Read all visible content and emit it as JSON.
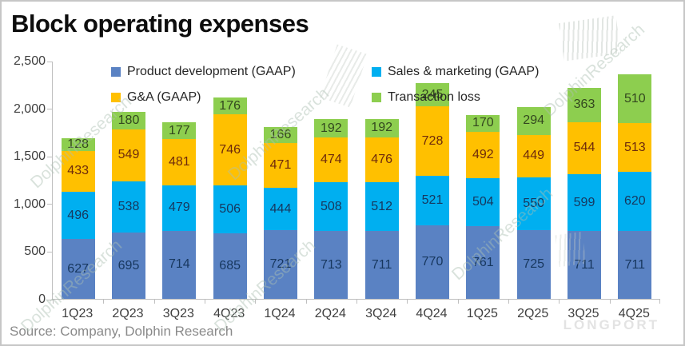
{
  "title": "Block operating expenses",
  "source": "Source: Company, Dolphin Research",
  "watermarks": {
    "diagonal_text": "DolphinResearch",
    "brand_text": "LONGPORT"
  },
  "colors": {
    "product_development": "#5a82c3",
    "sales_marketing": "#00aff0",
    "ga": "#ffc000",
    "transaction_loss": "#8dce4f",
    "axis_line": "#bfbfbf",
    "axis_text": "#3f3f3f",
    "source_text": "#8a8a8a"
  },
  "chart_data": {
    "type": "bar",
    "stacked": true,
    "title": "Block operating expenses",
    "categories": [
      "1Q23",
      "2Q23",
      "3Q23",
      "4Q23",
      "1Q24",
      "2Q24",
      "3Q24",
      "4Q24",
      "1Q25",
      "2Q25",
      "3Q25",
      "4Q25"
    ],
    "series": [
      {
        "name": "Product development (GAAP)",
        "color": "#5a82c3",
        "label_color": "#17375e",
        "values": [
          627,
          695,
          714,
          685,
          721,
          713,
          711,
          770,
          761,
          725,
          711,
          711
        ]
      },
      {
        "name": "Sales & marketing (GAAP)",
        "color": "#00aff0",
        "label_color": "#17375e",
        "values": [
          496,
          538,
          479,
          506,
          444,
          508,
          512,
          521,
          504,
          550,
          599,
          620
        ]
      },
      {
        "name": "G&A (GAAP)",
        "color": "#ffc000",
        "label_color": "#6e2a0c",
        "values": [
          433,
          549,
          481,
          746,
          471,
          474,
          476,
          728,
          492,
          449,
          544,
          513
        ]
      },
      {
        "name": "Transaction loss",
        "color": "#8dce4f",
        "label_color": "#33471f",
        "values": [
          128,
          180,
          177,
          176,
          166,
          192,
          192,
          245,
          170,
          294,
          363,
          510
        ]
      }
    ],
    "ylim": [
      0,
      2500
    ],
    "ytick_step": 500,
    "ytick_labels": [
      "0",
      "500",
      "1,000",
      "1,500",
      "2,000",
      "2,500"
    ],
    "xlabel": "",
    "ylabel": "",
    "grid": false,
    "legend_position": "top-inside",
    "data_labels": true
  }
}
